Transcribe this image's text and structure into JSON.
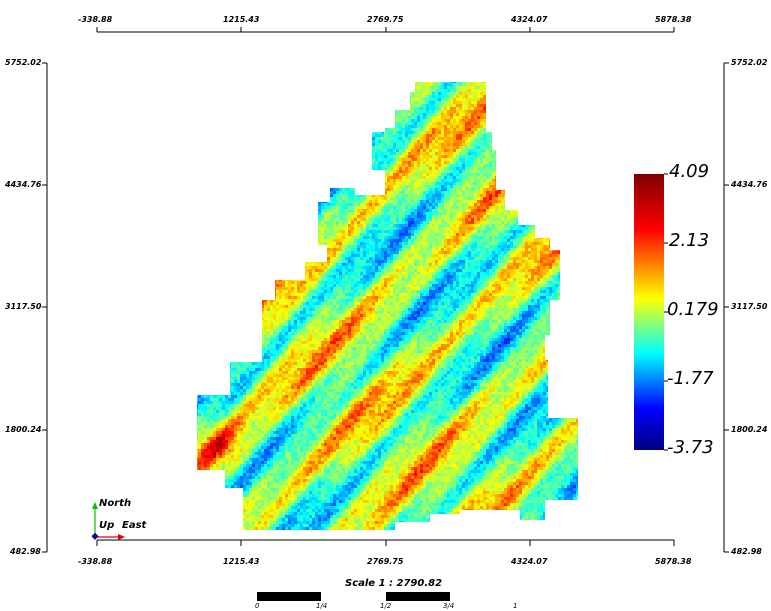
{
  "axes": {
    "x_ticks": [
      "-338.88",
      "1215.43",
      "2769.75",
      "4324.07",
      "5878.38"
    ],
    "y_ticks": [
      "5752.02",
      "4434.76",
      "3117.50",
      "1800.24",
      "482.98"
    ]
  },
  "colorbar": {
    "labels": [
      "4.09",
      "2.13",
      "0.179",
      "-1.77",
      "-3.73"
    ],
    "colors": [
      "#7f0000",
      "#ff0000",
      "#ffff00",
      "#00ffff",
      "#0000ff",
      "#00007f"
    ]
  },
  "compass": {
    "north": "North",
    "up": "Up",
    "east": "East"
  },
  "scale": {
    "text": "Scale 1 : 2790.82",
    "labels": [
      "0",
      "1/4",
      "1/2",
      "3/4",
      "1"
    ]
  }
}
